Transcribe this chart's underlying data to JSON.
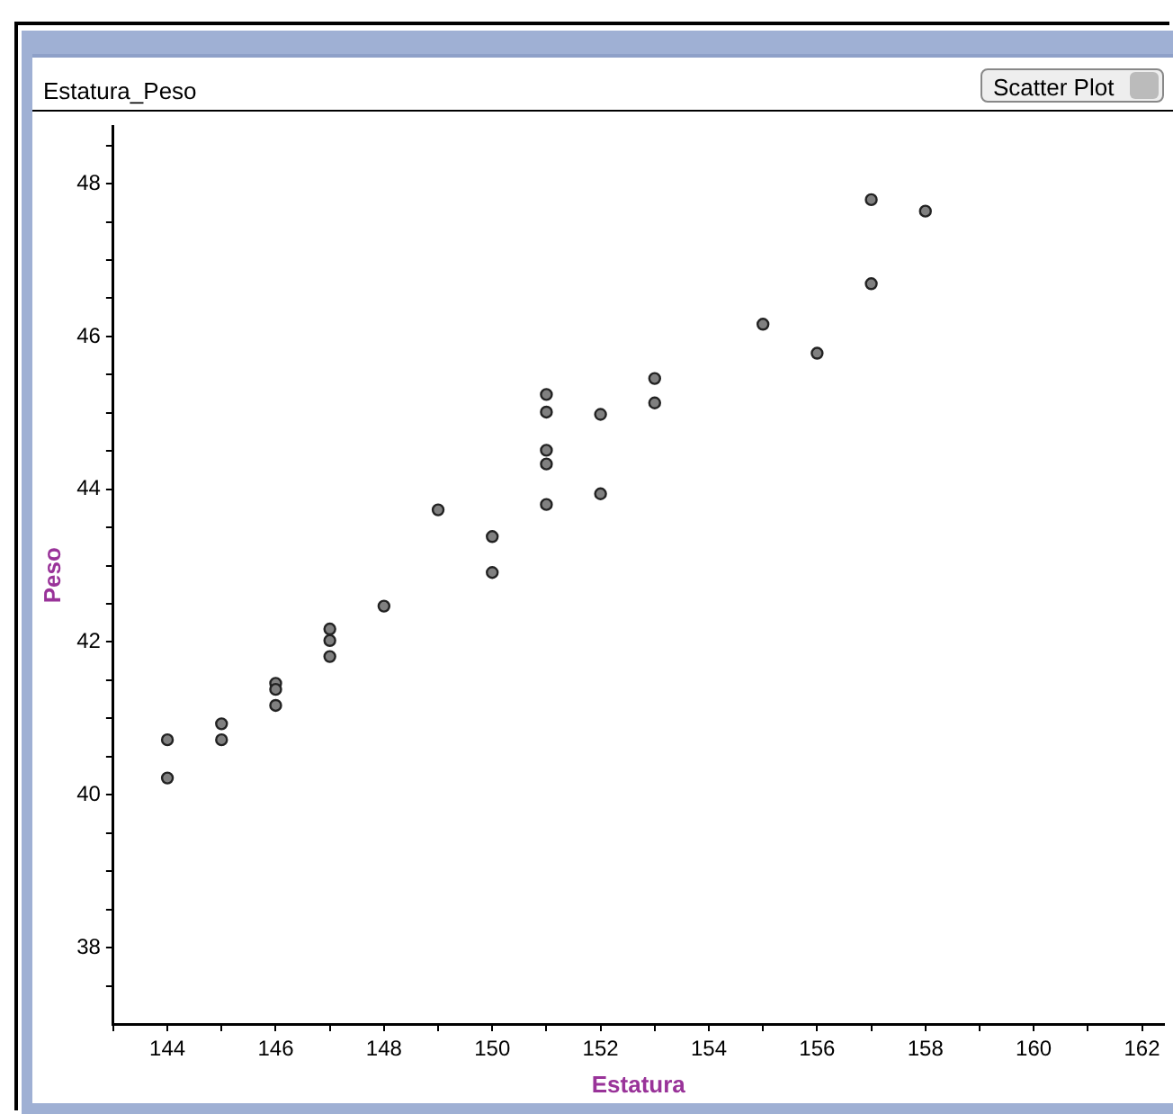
{
  "chart_data": {
    "type": "scatter",
    "title": "Estatura_Peso",
    "xlabel": "Estatura",
    "ylabel": "Peso",
    "annotations": [
      "Scatter Plot"
    ],
    "x": [
      144,
      144,
      145,
      145,
      146,
      146,
      146,
      147,
      147,
      147,
      148,
      149,
      150,
      150,
      151,
      151,
      151,
      151,
      151,
      152,
      152,
      153,
      153,
      155,
      156,
      157,
      157,
      158
    ],
    "series": [
      {
        "color": "#808080",
        "values": [
          40.72,
          40.22,
          40.93,
          40.72,
          41.46,
          41.38,
          41.17,
          42.17,
          42.02,
          41.81,
          42.47,
          43.73,
          43.38,
          42.91,
          45.24,
          45.01,
          44.51,
          44.33,
          43.8,
          44.98,
          43.94,
          45.45,
          45.13,
          46.16,
          45.78,
          47.79,
          46.69,
          47.64
        ]
      }
    ],
    "marker": "circle",
    "xlim": [
      143,
      162.4
    ],
    "ylim": [
      37,
      48.75
    ],
    "xticks": [
      {
        "value": 143,
        "label": null
      },
      144,
      {
        "value": 145,
        "label": null
      },
      146,
      {
        "value": 147,
        "label": null
      },
      148,
      {
        "value": 149,
        "label": null
      },
      150,
      {
        "value": 151,
        "label": null
      },
      152,
      {
        "value": 153,
        "label": null
      },
      154,
      {
        "value": 155,
        "label": null
      },
      156,
      {
        "value": 157,
        "label": null
      },
      158,
      {
        "value": 159,
        "label": null
      },
      160,
      {
        "value": 161,
        "label": null
      },
      162
    ],
    "yticks": [
      {
        "value": 37.5,
        "label": null
      },
      38,
      {
        "value": 38.5,
        "label": null
      },
      {
        "value": 39,
        "label": null
      },
      {
        "value": 39.5,
        "label": null
      },
      40,
      {
        "value": 40.5,
        "label": null
      },
      {
        "value": 41,
        "label": null
      },
      {
        "value": 41.5,
        "label": null
      },
      42,
      {
        "value": 42.5,
        "label": null
      },
      {
        "value": 43,
        "label": null
      },
      {
        "value": 43.5,
        "label": null
      },
      44,
      {
        "value": 44.5,
        "label": null
      },
      {
        "value": 45,
        "label": null
      },
      {
        "value": 45.5,
        "label": null
      },
      46,
      {
        "value": 46.5,
        "label": null
      },
      {
        "value": 47,
        "label": null
      },
      {
        "value": 47.5,
        "label": null
      },
      48,
      {
        "value": 48.5,
        "label": null
      }
    ]
  }
}
